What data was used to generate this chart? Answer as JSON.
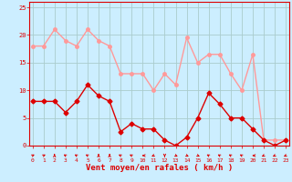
{
  "hours": [
    0,
    1,
    2,
    3,
    4,
    5,
    6,
    7,
    8,
    9,
    10,
    11,
    12,
    13,
    14,
    15,
    16,
    17,
    18,
    19,
    20,
    21,
    22,
    23
  ],
  "mean_wind": [
    8,
    8,
    8,
    6,
    8,
    11,
    9,
    8,
    2.5,
    4,
    3,
    3,
    1,
    0,
    1.5,
    5,
    9.5,
    7.5,
    5,
    5,
    3,
    1,
    0,
    1
  ],
  "gusts": [
    18,
    18,
    21,
    19,
    18,
    21,
    19,
    18,
    13,
    13,
    13,
    10,
    13,
    11,
    19.5,
    15,
    16.5,
    16.5,
    13,
    10,
    16.5,
    1,
    1,
    1
  ],
  "mean_color": "#dd0000",
  "gust_color": "#ff9999",
  "bg_color": "#cceeff",
  "grid_color": "#aacccc",
  "xlabel": "Vent moyen/en rafales ( km/h )",
  "xlabel_color": "#dd0000",
  "tick_color": "#dd0000",
  "axis_color": "#dd0000",
  "ylim": [
    0,
    26
  ],
  "yticks": [
    0,
    5,
    10,
    15,
    20,
    25
  ],
  "marker_size": 2.5,
  "linewidth": 1.0,
  "wind_angles": [
    45,
    45,
    0,
    315,
    315,
    315,
    0,
    0,
    315,
    315,
    270,
    225,
    180,
    135,
    135,
    135,
    315,
    315,
    315,
    315,
    270,
    225,
    225,
    225
  ]
}
